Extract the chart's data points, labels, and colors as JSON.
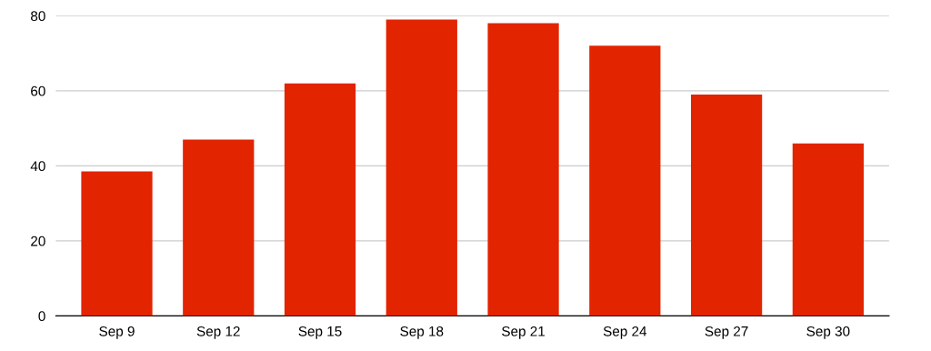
{
  "chart_data": {
    "type": "bar",
    "categories": [
      "Sep 9",
      "Sep 12",
      "Sep 15",
      "Sep 18",
      "Sep 21",
      "Sep 24",
      "Sep 27",
      "Sep 30"
    ],
    "values": [
      38.5,
      47,
      62,
      79,
      78,
      72,
      59,
      46
    ],
    "color": "#e22400",
    "ylim": [
      0,
      80
    ],
    "yticks": [
      0,
      20,
      40,
      60,
      80
    ],
    "grid": "y"
  }
}
